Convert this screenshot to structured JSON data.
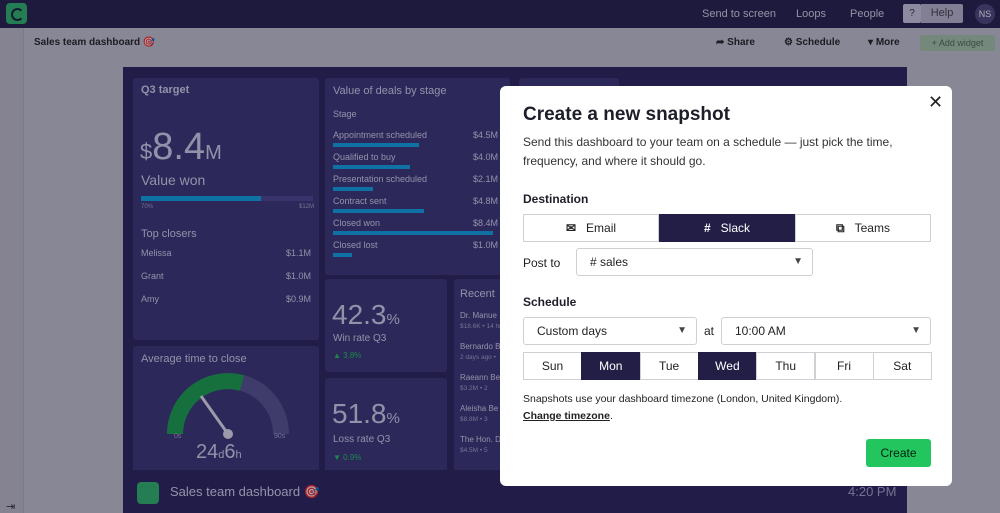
{
  "topbar": {
    "links": [
      "Send to screen",
      "Loops",
      "People"
    ],
    "help_q": "?",
    "help": "Help",
    "avatar": "NS"
  },
  "subbar": {
    "title": "Sales team dashboard 🎯",
    "share": "Share",
    "schedule": "Schedule",
    "more": "More",
    "add_widget": "+ Add widget"
  },
  "dashboard": {
    "q3": {
      "title": "Q3 target",
      "currency": "$",
      "value": "8.4",
      "suffix": "M",
      "sub": "Value won",
      "bar_min": "70%",
      "bar_max": "$12M",
      "progress": 0.7,
      "closers_title": "Top closers",
      "closers": [
        {
          "name": "Melissa",
          "value": "$1.1M"
        },
        {
          "name": "Grant",
          "value": "$1.0M"
        },
        {
          "name": "Amy",
          "value": "$0.9M"
        }
      ]
    },
    "deals": {
      "title": "Value of deals by stage",
      "col": "Stage",
      "rows": [
        {
          "stage": "Appointment scheduled",
          "value": "$4.5M",
          "frac": 0.54
        },
        {
          "stage": "Qualified to buy",
          "value": "$4.0M",
          "frac": 0.48
        },
        {
          "stage": "Presentation scheduled",
          "value": "$2.1M",
          "frac": 0.25
        },
        {
          "stage": "Contract sent",
          "value": "$4.8M",
          "frac": 0.57
        },
        {
          "stage": "Closed won",
          "value": "$8.4M",
          "frac": 1.0
        },
        {
          "stage": "Closed lost",
          "value": "$1.0M",
          "frac": 0.12
        }
      ]
    },
    "winrate": {
      "value": "42.3",
      "unit": "%",
      "label": "Win rate Q3",
      "delta": "3.8%"
    },
    "lossrate": {
      "value": "51.8",
      "unit": "%",
      "label": "Loss rate Q3",
      "delta": "0.9%"
    },
    "recent": {
      "title": "Recent",
      "items": [
        {
          "name": "Dr. Manue",
          "sub": "$18.6K • 14 hr"
        },
        {
          "name": "Bernardo B",
          "sub": "2 days ago •"
        },
        {
          "name": "Raeann Be",
          "sub": "$3.2M • 2"
        },
        {
          "name": "Aleisha Be",
          "sub": "$8.8M • 3"
        },
        {
          "name": "The Hon. D",
          "sub": "$4.5M • 5"
        }
      ]
    },
    "avg": {
      "title": "Average time to close",
      "min": "0s",
      "max": "90s",
      "value_d": "24",
      "unit_d": "d",
      "value_h": "6",
      "unit_h": "h"
    },
    "footer": {
      "title": "Sales team dashboard 🎯",
      "time": "4:20 PM"
    }
  },
  "modal": {
    "title": "Create a new snapshot",
    "desc": "Send this dashboard to your team on a schedule — just pick the time, frequency, and where it should go.",
    "destination_label": "Destination",
    "destinations": [
      {
        "label": "Email",
        "icon": "email-icon"
      },
      {
        "label": "Slack",
        "icon": "slack-icon",
        "selected": true
      },
      {
        "label": "Teams",
        "icon": "teams-icon"
      }
    ],
    "post_to_label": "Post to",
    "post_to_value": "# sales",
    "schedule_label": "Schedule",
    "frequency": "Custom days",
    "at_label": "at",
    "time": "10:00 AM",
    "days": [
      {
        "label": "Sun"
      },
      {
        "label": "Mon",
        "selected": true
      },
      {
        "label": "Tue"
      },
      {
        "label": "Wed",
        "selected": true
      },
      {
        "label": "Thu"
      },
      {
        "label": "Fri"
      },
      {
        "label": "Sat"
      }
    ],
    "note": "Snapshots use your dashboard timezone (London, United Kingdom).",
    "change_tz": "Change timezone",
    "create": "Create"
  },
  "colors": {
    "accent": "#22c55e",
    "selected": "#221e46",
    "bar": "#0ea5e9",
    "dash_bg": "#28235a"
  }
}
